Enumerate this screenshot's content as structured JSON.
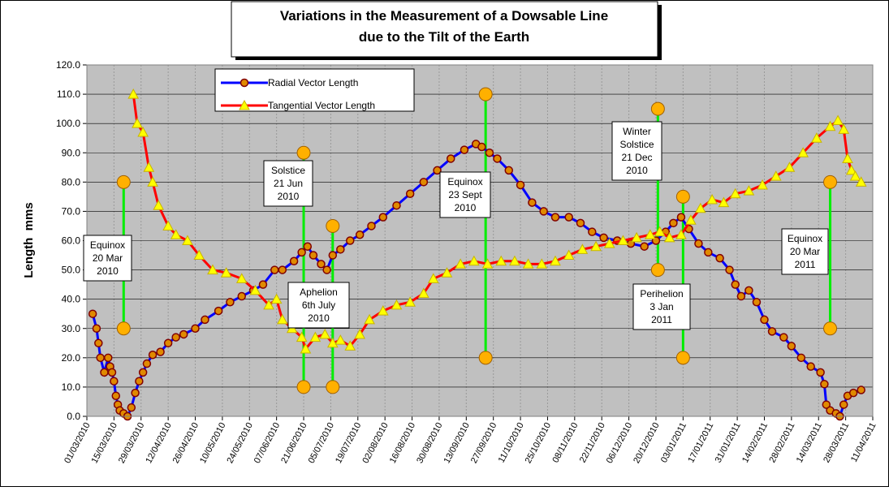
{
  "chart_data": {
    "type": "line",
    "title": [
      "Variations in the Measurement of a Dowsable Line",
      "due to the Tilt of the Earth"
    ],
    "y_label": "Length  mms",
    "xlim": [
      "01/03/2010",
      "11/04/2011"
    ],
    "xticks": [
      "01/03/2010",
      "15/03/2010",
      "29/03/2010",
      "12/04/2010",
      "26/04/2010",
      "10/05/2010",
      "24/05/2010",
      "07/06/2010",
      "21/06/2010",
      "05/07/2010",
      "19/07/2010",
      "02/08/2010",
      "16/08/2010",
      "30/08/2010",
      "13/09/2010",
      "27/09/2010",
      "11/10/2010",
      "25/10/2010",
      "08/11/2010",
      "22/11/2010",
      "06/12/2010",
      "20/12/2010",
      "03/01/2011",
      "17/01/2011",
      "31/01/2011",
      "14/02/2011",
      "28/02/2011",
      "14/03/2011",
      "28/03/2011",
      "11/04/2011"
    ],
    "ylim": [
      0,
      120
    ],
    "yticks": [
      {
        "value": 0,
        "label": "0.0"
      },
      {
        "value": 10,
        "label": "10.0"
      },
      {
        "value": 20,
        "label": "20.0"
      },
      {
        "value": 30,
        "label": "30.0"
      },
      {
        "value": 40,
        "label": "40.0"
      },
      {
        "value": 50,
        "label": "50.0"
      },
      {
        "value": 60,
        "label": "60.0"
      },
      {
        "value": 70,
        "label": "70.0"
      },
      {
        "value": 80,
        "label": "80.0"
      },
      {
        "value": 90,
        "label": "90.0"
      },
      {
        "value": 100,
        "label": "100.0"
      },
      {
        "value": 110,
        "label": "110.0"
      },
      {
        "value": 120,
        "label": "120.0"
      }
    ],
    "grid": true,
    "series": [
      {
        "name": "Radial Vector Length",
        "color": "#0000ff",
        "marker": "circle",
        "x": [
          "04/03/2010",
          "06/03/2010",
          "07/03/2010",
          "08/03/2010",
          "10/03/2010",
          "12/03/2010",
          "13/03/2010",
          "14/03/2010",
          "15/03/2010",
          "16/03/2010",
          "17/03/2010",
          "18/03/2010",
          "20/03/2010",
          "22/03/2010",
          "24/03/2010",
          "26/03/2010",
          "28/03/2010",
          "30/03/2010",
          "01/04/2010",
          "04/04/2010",
          "08/04/2010",
          "12/04/2010",
          "16/04/2010",
          "20/04/2010",
          "26/04/2010",
          "01/05/2010",
          "08/05/2010",
          "14/05/2010",
          "20/05/2010",
          "26/05/2010",
          "31/05/2010",
          "06/06/2010",
          "10/06/2010",
          "16/06/2010",
          "20/06/2010",
          "23/06/2010",
          "26/06/2010",
          "30/06/2010",
          "03/07/2010",
          "06/07/2010",
          "10/07/2010",
          "15/07/2010",
          "20/07/2010",
          "26/07/2010",
          "01/08/2010",
          "08/08/2010",
          "15/08/2010",
          "22/08/2010",
          "29/08/2010",
          "05/09/2010",
          "12/09/2010",
          "18/09/2010",
          "21/09/2010",
          "25/09/2010",
          "29/09/2010",
          "05/10/2010",
          "11/10/2010",
          "17/10/2010",
          "23/10/2010",
          "29/10/2010",
          "05/11/2010",
          "11/11/2010",
          "17/11/2010",
          "23/11/2010",
          "30/11/2010",
          "07/12/2010",
          "14/12/2010",
          "20/12/2010",
          "25/12/2010",
          "29/12/2010",
          "02/01/2011",
          "06/01/2011",
          "11/01/2011",
          "16/01/2011",
          "22/01/2011",
          "27/01/2011",
          "30/01/2011",
          "02/02/2011",
          "06/02/2011",
          "10/02/2011",
          "14/02/2011",
          "18/02/2011",
          "24/02/2011",
          "28/02/2011",
          "05/03/2011",
          "10/03/2011",
          "15/03/2011",
          "17/03/2011",
          "18/03/2011",
          "20/03/2011",
          "23/03/2011",
          "25/03/2011",
          "27/03/2011",
          "29/03/2011",
          "01/04/2011",
          "05/04/2011"
        ],
        "values": [
          35,
          30,
          25,
          20,
          15,
          20,
          17,
          15,
          12,
          7,
          4,
          2,
          1,
          0,
          3,
          8,
          12,
          15,
          18,
          21,
          22,
          25,
          27,
          28,
          30,
          33,
          36,
          39,
          41,
          43,
          45,
          50,
          50,
          53,
          56,
          58,
          55,
          52,
          50,
          55,
          57,
          60,
          62,
          65,
          68,
          72,
          76,
          80,
          84,
          88,
          91,
          93,
          92,
          90,
          88,
          84,
          79,
          73,
          70,
          68,
          68,
          66,
          63,
          61,
          60,
          59,
          58,
          60,
          63,
          66,
          68,
          64,
          59,
          56,
          54,
          50,
          45,
          41,
          43,
          39,
          33,
          29,
          27,
          24,
          20,
          17,
          15,
          11,
          4,
          2,
          1,
          0,
          4,
          7,
          8,
          9
        ]
      },
      {
        "name": "Tangential Vector Length",
        "color": "#ff0000",
        "marker": "triangle",
        "x": [
          "25/03/2010",
          "27/03/2010",
          "30/03/2010",
          "02/04/2010",
          "04/04/2010",
          "07/04/2010",
          "12/04/2010",
          "16/04/2010",
          "22/04/2010",
          "28/04/2010",
          "05/05/2010",
          "12/05/2010",
          "20/05/2010",
          "27/05/2010",
          "03/06/2010",
          "07/06/2010",
          "10/06/2010",
          "15/06/2010",
          "20/06/2010",
          "22/06/2010",
          "27/06/2010",
          "02/07/2010",
          "06/07/2010",
          "10/07/2010",
          "15/07/2010",
          "20/07/2010",
          "25/07/2010",
          "01/08/2010",
          "08/08/2010",
          "15/08/2010",
          "22/08/2010",
          "27/08/2010",
          "03/09/2010",
          "10/09/2010",
          "17/09/2010",
          "24/09/2010",
          "01/10/2010",
          "08/10/2010",
          "15/10/2010",
          "22/10/2010",
          "29/10/2010",
          "05/11/2010",
          "12/11/2010",
          "19/11/2010",
          "26/11/2010",
          "03/12/2010",
          "10/12/2010",
          "17/12/2010",
          "22/12/2010",
          "27/12/2010",
          "02/01/2011",
          "07/01/2011",
          "12/01/2011",
          "18/01/2011",
          "24/01/2011",
          "30/01/2011",
          "06/02/2011",
          "13/02/2011",
          "20/02/2011",
          "27/02/2011",
          "06/03/2011",
          "13/03/2011",
          "20/03/2011",
          "24/03/2011",
          "27/03/2011",
          "29/03/2011",
          "31/03/2011",
          "02/04/2011",
          "05/04/2011"
        ],
        "values": [
          110,
          100,
          97,
          85,
          80,
          72,
          65,
          62,
          60,
          55,
          50,
          49,
          47,
          43,
          38,
          40,
          33,
          30,
          27,
          23,
          27,
          28,
          25,
          26,
          24,
          28,
          33,
          36,
          38,
          39,
          42,
          47,
          49,
          52,
          53,
          52,
          53,
          53,
          52,
          52,
          53,
          55,
          57,
          58,
          59,
          60,
          61,
          62,
          63,
          61,
          62,
          67,
          71,
          74,
          73,
          76,
          77,
          79,
          82,
          85,
          90,
          95,
          99,
          101,
          98,
          88,
          84,
          82,
          80
        ]
      }
    ],
    "events": [
      {
        "x": "20/03/2010",
        "low": 30,
        "high": 80,
        "label": [
          "Equinox",
          "20 Mar",
          "2010"
        ]
      },
      {
        "x": "21/06/2010",
        "low": 10,
        "high": 90,
        "label": [
          "Solstice",
          "21 Jun",
          "2010"
        ]
      },
      {
        "x": "06/07/2010",
        "low": 10,
        "high": 65,
        "label": [
          "Aphelion",
          "6th July",
          "2010"
        ]
      },
      {
        "x": "23/09/2010",
        "low": 20,
        "high": 110,
        "label": [
          "Equinox",
          "23 Sept",
          "2010"
        ]
      },
      {
        "x": "21/12/2010",
        "low": 50,
        "high": 105,
        "label": [
          "Winter",
          "Solstice",
          "21 Dec",
          "2010"
        ]
      },
      {
        "x": "03/01/2011",
        "low": 20,
        "high": 75,
        "label": [
          "Perihelion",
          "3 Jan",
          "2011"
        ]
      },
      {
        "x": "20/03/2011",
        "low": 30,
        "high": 80,
        "label": [
          "Equinox",
          "20 Mar",
          "2011"
        ]
      }
    ]
  }
}
